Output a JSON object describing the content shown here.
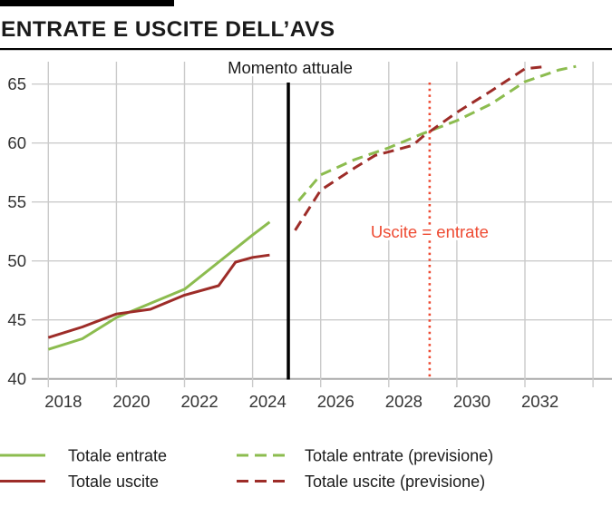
{
  "header": {
    "title": "ENTRATE E USCITE DELL’AVS"
  },
  "chart_data": {
    "type": "line",
    "title": "ENTRATE E USCITE DELL’AVS",
    "x_axis": {
      "tick_labels": [
        "2018",
        "2020",
        "2022",
        "2024",
        "2026",
        "2028",
        "2030",
        "2032"
      ],
      "gridline_years": [
        2018,
        2020,
        2022,
        2024,
        2026,
        2028,
        2030,
        2032,
        2034
      ],
      "range": [
        2018,
        2034.6
      ]
    },
    "y_axis": {
      "tick_labels": [
        "40",
        "45",
        "50",
        "55",
        "60",
        "65"
      ],
      "ticks": [
        40,
        45,
        50,
        55,
        60,
        65
      ],
      "range": [
        40,
        66.5
      ],
      "gridlines": true
    },
    "legend_position": "bottom",
    "series": [
      {
        "name": "Totale entrate",
        "style": "solid",
        "color": "#8CBC4F",
        "points": [
          [
            2018,
            42.5
          ],
          [
            2019,
            43.4
          ],
          [
            2020,
            45.2
          ],
          [
            2021,
            46.4
          ],
          [
            2022,
            47.6
          ],
          [
            2023,
            49.9
          ],
          [
            2024,
            52.2
          ],
          [
            2024.5,
            53.3
          ]
        ]
      },
      {
        "name": "Totale uscite",
        "style": "solid",
        "color": "#9D2C28",
        "points": [
          [
            2018,
            43.5
          ],
          [
            2019,
            44.4
          ],
          [
            2020,
            45.5
          ],
          [
            2021,
            45.9
          ],
          [
            2022,
            47.1
          ],
          [
            2023,
            47.9
          ],
          [
            2023.5,
            49.9
          ],
          [
            2024,
            50.3
          ],
          [
            2024.5,
            50.5
          ]
        ]
      },
      {
        "name": "Totale entrate (previsione)",
        "style": "dashed",
        "color": "#8CBC4F",
        "points": [
          [
            2025.35,
            55.1
          ],
          [
            2026,
            57.3
          ],
          [
            2027,
            58.6
          ],
          [
            2028,
            59.6
          ],
          [
            2029,
            60.8
          ],
          [
            2030,
            61.9
          ],
          [
            2031,
            63.3
          ],
          [
            2032,
            65.2
          ],
          [
            2033,
            66.2
          ],
          [
            2033.5,
            66.5
          ]
        ]
      },
      {
        "name": "Totale uscite (previsione)",
        "style": "dashed",
        "color": "#9D2C28",
        "points": [
          [
            2025.25,
            52.6
          ],
          [
            2026,
            56.0
          ],
          [
            2027,
            57.9
          ],
          [
            2027.6,
            58.95
          ],
          [
            2028,
            59.25
          ],
          [
            2028.7,
            59.8
          ],
          [
            2029,
            60.55
          ],
          [
            2030,
            62.6
          ],
          [
            2031,
            64.4
          ],
          [
            2032,
            66.3
          ],
          [
            2032.5,
            66.45
          ]
        ]
      }
    ],
    "annotations": [
      {
        "id": "momento-attuale",
        "label": "Momento attuale",
        "year": 2025.05,
        "line": "solid",
        "color": "#000000"
      },
      {
        "id": "break-even",
        "label": "Uscite = entrate",
        "year": 2029.2,
        "line": "dotted",
        "color": "#EE4B33"
      }
    ]
  },
  "colors": {
    "entrate": "#8CBC4F",
    "uscite": "#9D2C28",
    "accent_red": "#EE4B33",
    "grid": "#CBCBCB",
    "axis": "#ABABAB",
    "text": "#1A1A1A",
    "tick_text": "#333333"
  }
}
